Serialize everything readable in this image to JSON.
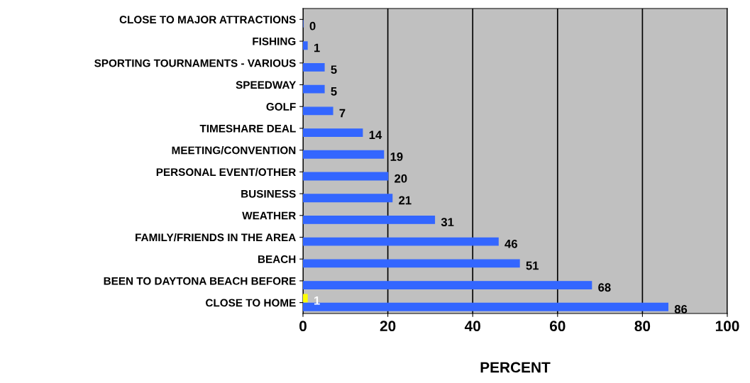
{
  "chart_data": {
    "type": "bar",
    "orientation": "horizontal",
    "xlabel": "PERCENT",
    "categories": [
      "CLOSE TO MAJOR ATTRACTIONS",
      "FISHING",
      "SPORTING TOURNAMENTS - VARIOUS",
      "SPEEDWAY",
      "GOLF",
      "TIMESHARE DEAL",
      "MEETING/CONVENTION",
      "PERSONAL EVENT/OTHER",
      "BUSINESS",
      "WEATHER",
      "FAMILY/FRIENDS IN THE AREA",
      "BEACH",
      "BEEN TO DAYTONA BEACH BEFORE",
      "CLOSE TO HOME"
    ],
    "series": [
      {
        "color": "#ffff00",
        "values": [
          null,
          null,
          null,
          null,
          null,
          null,
          null,
          null,
          null,
          null,
          null,
          null,
          null,
          1
        ]
      },
      {
        "color": "#3366ff",
        "values": [
          0,
          1,
          5,
          5,
          7,
          14,
          19,
          20,
          21,
          31,
          46,
          51,
          68,
          86
        ]
      }
    ],
    "xlim": [
      0,
      100
    ],
    "xticks": [
      0,
      20,
      40,
      60,
      80,
      100
    ],
    "grid": "x",
    "data_labels": true,
    "legend": false
  }
}
